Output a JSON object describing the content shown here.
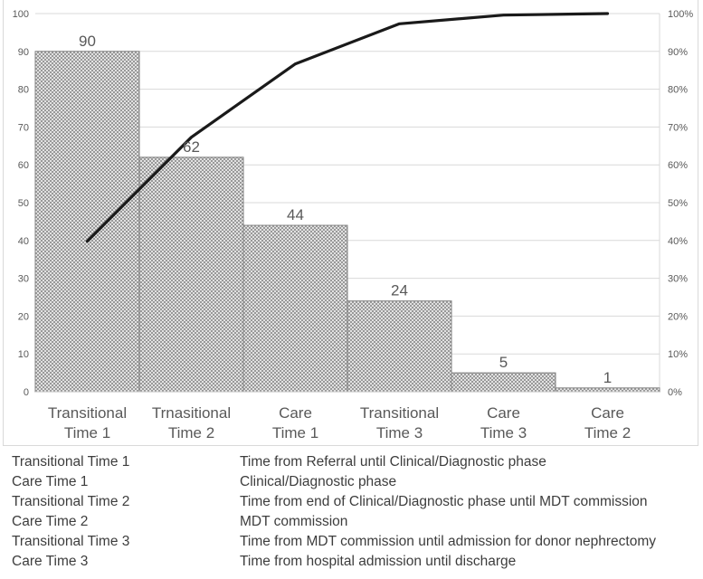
{
  "chart_data": {
    "type": "bar",
    "subtype": "pareto (bar + cumulative percentage line)",
    "title": "",
    "xlabel": "",
    "ylabel": "",
    "categories": [
      "Transitional Time 1",
      "Trnasitional Time 2",
      "Care Time 1",
      "Transitional Time 3",
      "Care Time 3",
      "Care Time 2"
    ],
    "category_label_lines": [
      [
        "Transitional",
        "Time 1"
      ],
      [
        "Trnasitional",
        "Time 2"
      ],
      [
        "Care",
        "Time 1"
      ],
      [
        "Transitional",
        "Time 3"
      ],
      [
        "Care",
        "Time 3"
      ],
      [
        "Care",
        "Time 2"
      ]
    ],
    "series": [
      {
        "name": "bars",
        "type": "bar",
        "values": [
          90,
          62,
          44,
          24,
          5,
          1
        ]
      },
      {
        "name": "cumulative-percent",
        "type": "line",
        "values": [
          39.8,
          67.3,
          86.7,
          97.3,
          99.6,
          100.0
        ]
      }
    ],
    "bar_value_labels": [
      "90",
      "62",
      "44",
      "24",
      "5",
      "1"
    ],
    "left_axis_ticks": [
      "0",
      "10",
      "20",
      "30",
      "40",
      "50",
      "60",
      "70",
      "80",
      "90",
      "100"
    ],
    "right_axis_ticks": [
      "0%",
      "10%",
      "20%",
      "30%",
      "40%",
      "50%",
      "60%",
      "70%",
      "80%",
      "90%",
      "100%"
    ],
    "ylim": [
      0,
      100
    ],
    "y2lim": [
      0,
      100
    ],
    "grid": true,
    "legend": false,
    "colors": {
      "bar_fill_pattern": "diagonal-crosshatch",
      "bar_pattern_line": "#8a8a8a",
      "bar_pattern_bg": "#f7f7f7",
      "bar_border": "#7f7f7f",
      "line": "#1a1a1a",
      "gridline": "#d9d9d9",
      "axis_line": "#bfbfbf",
      "tick_text": "#595959",
      "label_text": "#595959",
      "chart_border": "#d9d9d9"
    }
  },
  "definitions": [
    {
      "term": "Transitional Time 1",
      "description": "Time from Referral until Clinical/Diagnostic phase"
    },
    {
      "term": "Care Time 1",
      "description": "Clinical/Diagnostic phase"
    },
    {
      "term": "Transitional Time 2",
      "description": "Time from end of Clinical/Diagnostic phase until MDT commission"
    },
    {
      "term": "Care Time 2",
      "description": "MDT commission"
    },
    {
      "term": "Transitional Time 3",
      "description": "Time from MDT commission until admission for donor nephrectomy"
    },
    {
      "term": "Care Time 3",
      "description": "Time from hospital admission until discharge"
    }
  ]
}
